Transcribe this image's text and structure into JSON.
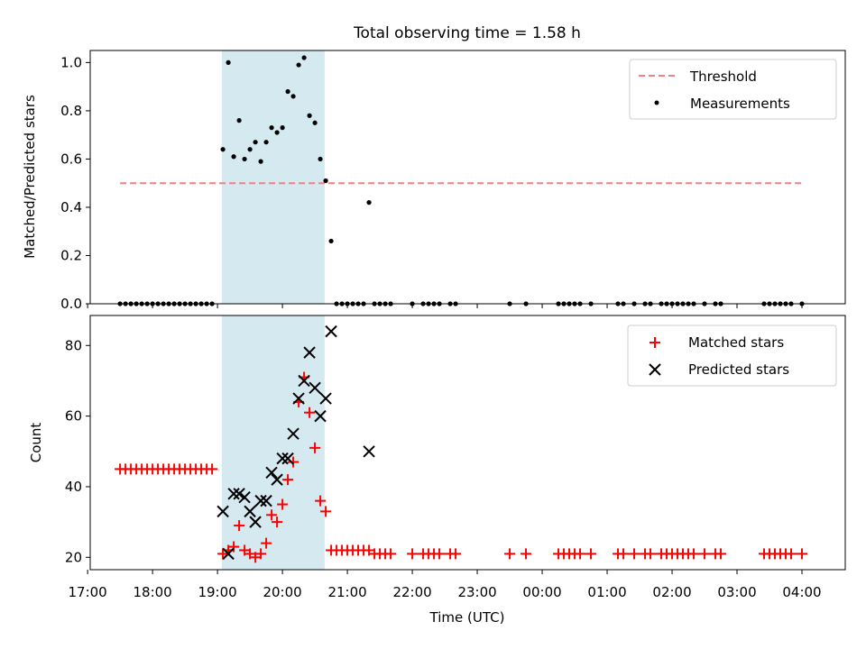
{
  "title": "Total observing time = 1.58 h",
  "colors": {
    "band": "#d4e9f0",
    "threshold": "#f47f7f",
    "measurements": "#000000",
    "matched": "#ff0000",
    "predicted": "#000000"
  },
  "chart_data": [
    {
      "type": "scatter",
      "ylabel": "Matched/Predicted stars",
      "xlim": [
        "17:30",
        "04:40"
      ],
      "ylim": [
        0,
        1.05
      ],
      "yticks": [
        "0.0",
        "0.2",
        "0.4",
        "0.6",
        "0.8",
        "1.0"
      ],
      "shaded_interval": [
        "19:04",
        "20:39"
      ],
      "legend": {
        "position": "top-right",
        "entries": [
          "Threshold",
          "Measurements"
        ]
      },
      "threshold": {
        "name": "Threshold",
        "value": 0.5,
        "x": [
          "17:30",
          "04:00"
        ]
      },
      "series": [
        {
          "name": "Measurements",
          "x": [
            "17:30",
            "17:35",
            "17:40",
            "17:45",
            "17:50",
            "17:55",
            "18:00",
            "18:05",
            "18:10",
            "18:15",
            "18:20",
            "18:25",
            "18:30",
            "18:35",
            "18:40",
            "18:45",
            "18:50",
            "18:55",
            "19:05",
            "19:10",
            "19:15",
            "19:20",
            "19:25",
            "19:30",
            "19:35",
            "19:40",
            "19:45",
            "19:50",
            "19:55",
            "20:00",
            "20:05",
            "20:10",
            "20:15",
            "20:20",
            "20:25",
            "20:30",
            "20:35",
            "20:40",
            "20:45",
            "20:50",
            "20:55",
            "21:00",
            "21:05",
            "21:10",
            "21:15",
            "21:20",
            "21:25",
            "21:30",
            "21:35",
            "21:40",
            "22:00",
            "22:10",
            "22:15",
            "22:20",
            "22:25",
            "22:35",
            "22:40",
            "23:30",
            "23:45",
            "00:15",
            "00:20",
            "00:25",
            "00:30",
            "00:35",
            "00:45",
            "01:10",
            "01:15",
            "01:25",
            "01:35",
            "01:40",
            "01:50",
            "01:55",
            "02:00",
            "02:05",
            "02:10",
            "02:15",
            "02:20",
            "02:30",
            "02:40",
            "02:45",
            "03:25",
            "03:30",
            "03:35",
            "03:40",
            "03:45",
            "03:50",
            "04:00"
          ],
          "y": [
            0,
            0,
            0,
            0,
            0,
            0,
            0,
            0,
            0,
            0,
            0,
            0,
            0,
            0,
            0,
            0,
            0,
            0,
            0.64,
            1.0,
            0.61,
            0.76,
            0.6,
            0.64,
            0.67,
            0.59,
            0.67,
            0.73,
            0.71,
            0.73,
            0.88,
            0.86,
            0.99,
            1.02,
            0.78,
            0.75,
            0.6,
            0.51,
            0.26,
            0,
            0,
            0,
            0,
            0,
            0,
            0.42,
            0,
            0,
            0,
            0,
            0,
            0,
            0,
            0,
            0,
            0,
            0,
            0,
            0,
            0,
            0,
            0,
            0,
            0,
            0,
            0,
            0,
            0,
            0,
            0,
            0,
            0,
            0,
            0,
            0,
            0,
            0,
            0,
            0,
            0,
            0,
            0,
            0,
            0,
            0,
            0,
            0
          ]
        }
      ]
    },
    {
      "type": "scatter",
      "ylabel": "Count",
      "xlabel": "Time (UTC)",
      "xlim": [
        "17:30",
        "04:40"
      ],
      "ylim": [
        16.5,
        88.5
      ],
      "yticks": [
        "20",
        "40",
        "60",
        "80"
      ],
      "xticks": [
        "17:00",
        "18:00",
        "19:00",
        "20:00",
        "21:00",
        "22:00",
        "23:00",
        "00:00",
        "01:00",
        "02:00",
        "03:00",
        "04:00"
      ],
      "shaded_interval": [
        "19:04",
        "20:39"
      ],
      "legend": {
        "position": "top-right",
        "entries": [
          "Matched stars",
          "Predicted stars"
        ]
      },
      "series": [
        {
          "name": "Matched stars",
          "x": [
            "17:30",
            "17:35",
            "17:40",
            "17:45",
            "17:50",
            "17:55",
            "18:00",
            "18:05",
            "18:10",
            "18:15",
            "18:20",
            "18:25",
            "18:30",
            "18:35",
            "18:40",
            "18:45",
            "18:50",
            "18:55",
            "19:05",
            "19:10",
            "19:15",
            "19:20",
            "19:25",
            "19:30",
            "19:35",
            "19:40",
            "19:45",
            "19:50",
            "19:55",
            "20:00",
            "20:05",
            "20:10",
            "20:15",
            "20:20",
            "20:25",
            "20:30",
            "20:35",
            "20:40",
            "20:45",
            "20:50",
            "20:55",
            "21:00",
            "21:05",
            "21:10",
            "21:15",
            "21:20",
            "21:25",
            "21:30",
            "21:35",
            "21:40",
            "22:00",
            "22:10",
            "22:15",
            "22:20",
            "22:25",
            "22:35",
            "22:40",
            "23:30",
            "23:45",
            "00:15",
            "00:20",
            "00:25",
            "00:30",
            "00:35",
            "00:45",
            "01:10",
            "01:15",
            "01:25",
            "01:35",
            "01:40",
            "01:50",
            "01:55",
            "02:00",
            "02:05",
            "02:10",
            "02:15",
            "02:20",
            "02:30",
            "02:40",
            "02:45",
            "03:25",
            "03:30",
            "03:35",
            "03:40",
            "03:45",
            "03:50",
            "04:00"
          ],
          "y": [
            45,
            45,
            45,
            45,
            45,
            45,
            45,
            45,
            45,
            45,
            45,
            45,
            45,
            45,
            45,
            45,
            45,
            45,
            21,
            22,
            23,
            29,
            22,
            21,
            20,
            21,
            24,
            32,
            30,
            35,
            42,
            47,
            64,
            71,
            61,
            51,
            36,
            33,
            22,
            22,
            22,
            22,
            22,
            22,
            22,
            22,
            21,
            21,
            21,
            21,
            21,
            21,
            21,
            21,
            21,
            21,
            21,
            21,
            21,
            21,
            21,
            21,
            21,
            21,
            21,
            21,
            21,
            21,
            21,
            21,
            21,
            21,
            21,
            21,
            21,
            21,
            21,
            21,
            21,
            21,
            21,
            21,
            21,
            21,
            21,
            21,
            21
          ]
        },
        {
          "name": "Predicted stars",
          "x": [
            "19:05",
            "19:10",
            "19:15",
            "19:20",
            "19:25",
            "19:30",
            "19:35",
            "19:40",
            "19:45",
            "19:50",
            "19:55",
            "20:00",
            "20:05",
            "20:10",
            "20:15",
            "20:20",
            "20:25",
            "20:30",
            "20:35",
            "20:40",
            "20:45",
            "21:20"
          ],
          "y": [
            33,
            21,
            38,
            38,
            37,
            33,
            30,
            36,
            36,
            44,
            42,
            48,
            48,
            55,
            65,
            70,
            78,
            68,
            60,
            65,
            84,
            50
          ]
        }
      ]
    }
  ]
}
